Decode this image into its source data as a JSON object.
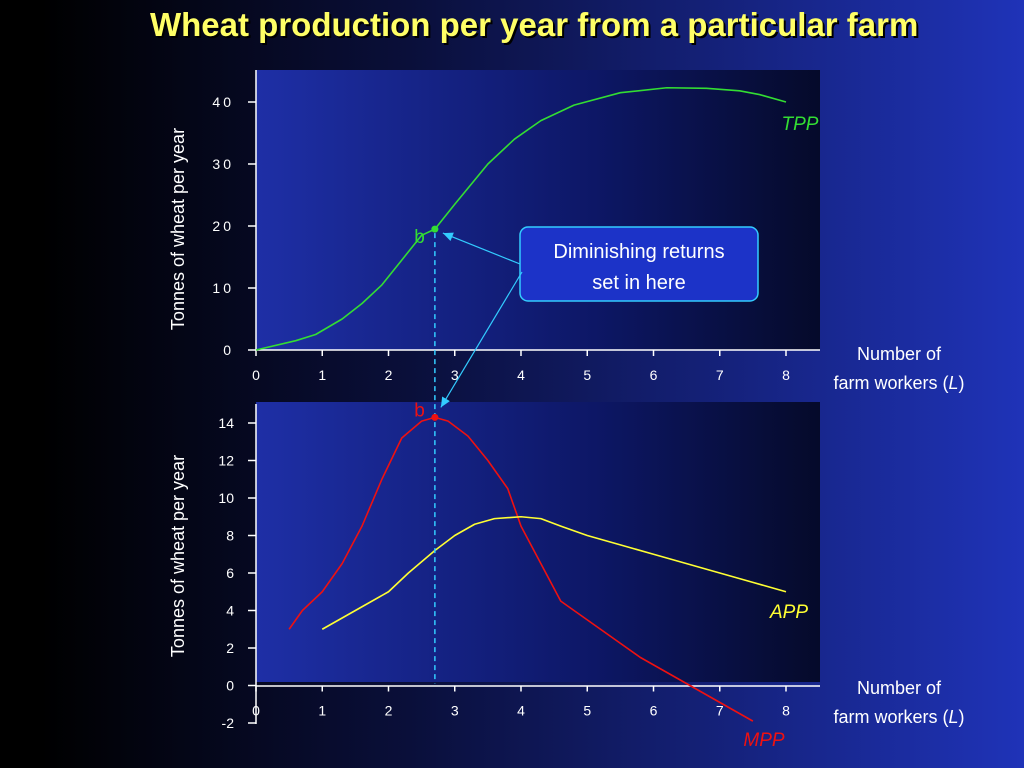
{
  "title": "Wheat production per year from a particular farm",
  "colors": {
    "title": "#ffff66",
    "tpp": "#33dd33",
    "app": "#ffff33",
    "mpp": "#ee1111",
    "annotation": "#33ccff",
    "text": "#ffffff"
  },
  "callout": {
    "line1": "Diminishing returns",
    "line2": "set in here"
  },
  "chart_data": [
    {
      "type": "line",
      "xlabel_line1": "Number of",
      "xlabel_line2_prefix": "farm workers (",
      "xlabel_line2_var": "L",
      "xlabel_line2_suffix": ")",
      "ylabel": "Tonnes of wheat  per year",
      "xlim": [
        0,
        8.5
      ],
      "ylim": [
        0,
        45
      ],
      "x_ticks": [
        "0",
        "1",
        "2",
        "3",
        "4",
        "5",
        "6",
        "7",
        "8"
      ],
      "y_ticks": [
        "0",
        "10",
        "20",
        "30",
        "40"
      ],
      "grid": false,
      "series": [
        {
          "name": "TPP",
          "x": [
            0,
            0.6,
            0.9,
            1.3,
            1.6,
            1.9,
            2.2,
            2.5,
            2.7,
            3.0,
            3.5,
            3.9,
            4.3,
            4.8,
            5.5,
            6.2,
            6.8,
            7.3,
            7.6,
            8.0
          ],
          "y": [
            0,
            1.5,
            2.5,
            5,
            7.5,
            10.5,
            14.5,
            18.5,
            19.5,
            23.5,
            30,
            34,
            37,
            39.5,
            41.5,
            42.3,
            42.2,
            41.8,
            41.2,
            40
          ]
        }
      ],
      "points": [
        {
          "label": "b",
          "x": 2.7,
          "y": 19.5
        }
      ]
    },
    {
      "type": "line",
      "xlabel_line1": "Number of",
      "xlabel_line2_prefix": "farm workers (",
      "xlabel_line2_var": "L",
      "xlabel_line2_suffix": ")",
      "ylabel": "Tonnes of wheat  per year",
      "xlim": [
        0,
        8.5
      ],
      "ylim": [
        -2,
        15
      ],
      "x_ticks": [
        "0",
        "1",
        "2",
        "3",
        "4",
        "5",
        "6",
        "7",
        "8"
      ],
      "y_ticks": [
        "-2",
        "0",
        "2",
        "4",
        "6",
        "8",
        "10",
        "12",
        "14"
      ],
      "grid": false,
      "series": [
        {
          "name": "MPP",
          "x": [
            0.5,
            0.7,
            1.0,
            1.3,
            1.6,
            1.9,
            2.2,
            2.5,
            2.7,
            2.9,
            3.2,
            3.5,
            3.8,
            4.0,
            4.3,
            4.6,
            5.0,
            5.4,
            5.8,
            6.2,
            6.6,
            7.0,
            7.5
          ],
          "y": [
            3.0,
            4.0,
            5.0,
            6.5,
            8.5,
            11,
            13.2,
            14.1,
            14.3,
            14.1,
            13.3,
            12.0,
            10.5,
            8.5,
            6.5,
            4.5,
            3.5,
            2.5,
            1.5,
            0.7,
            -0.1,
            -0.9,
            -1.9
          ]
        },
        {
          "name": "APP",
          "x": [
            1.0,
            1.5,
            2.0,
            2.3,
            2.7,
            3.0,
            3.3,
            3.6,
            4.0,
            4.3,
            4.6,
            5.0,
            5.5,
            6.0,
            6.5,
            7.0,
            7.5,
            8.0
          ],
          "y": [
            3.0,
            4.0,
            5.0,
            6.0,
            7.2,
            8.0,
            8.6,
            8.9,
            9.0,
            8.9,
            8.5,
            8.0,
            7.5,
            7.0,
            6.5,
            6.0,
            5.5,
            5.0
          ]
        }
      ],
      "points": [
        {
          "label": "b",
          "x": 2.7,
          "y": 14.3
        }
      ]
    }
  ]
}
